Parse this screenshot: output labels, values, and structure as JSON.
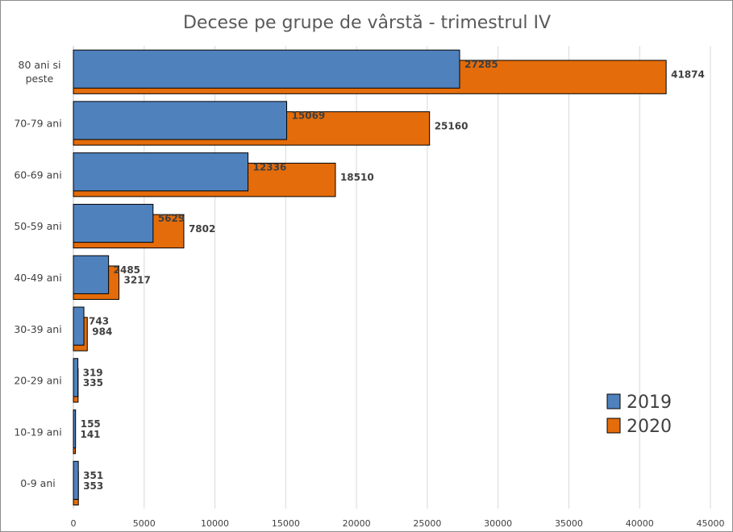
{
  "chart_data": {
    "type": "bar",
    "orientation": "horizontal",
    "title": "Decese pe grupe de vârstă - trimestrul IV",
    "categories": [
      "80 ani si peste",
      "70-79 ani",
      "60-69 ani",
      "50-59 ani",
      "40-49 ani",
      "30-39 ani",
      "20-29 ani",
      "10-19 ani",
      "0-9 ani"
    ],
    "series": [
      {
        "name": "2019",
        "color": "#4f81bd",
        "values": [
          27285,
          15069,
          12336,
          5629,
          2485,
          743,
          319,
          155,
          351
        ]
      },
      {
        "name": "2020",
        "color": "#e46c0a",
        "values": [
          41874,
          25160,
          18510,
          7802,
          3217,
          984,
          335,
          141,
          353
        ]
      }
    ],
    "xlim": [
      0,
      45000
    ],
    "x_ticks": [
      0,
      5000,
      10000,
      15000,
      20000,
      25000,
      30000,
      35000,
      40000,
      45000
    ],
    "grid": true,
    "legend_position": "bottom-right",
    "xlabel": "",
    "ylabel": ""
  }
}
